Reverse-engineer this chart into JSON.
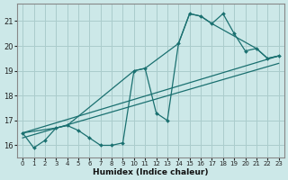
{
  "xlabel": "Humidex (Indice chaleur)",
  "bg_color": "#cce8e8",
  "grid_color": "#aacccc",
  "line_color": "#1a7070",
  "xlim": [
    -0.5,
    23.5
  ],
  "ylim": [
    15.5,
    21.7
  ],
  "yticks": [
    16,
    17,
    18,
    19,
    20,
    21
  ],
  "xticks": [
    0,
    1,
    2,
    3,
    4,
    5,
    6,
    7,
    8,
    9,
    10,
    11,
    12,
    13,
    14,
    15,
    16,
    17,
    18,
    19,
    20,
    21,
    22,
    23
  ],
  "line1_x": [
    0,
    1,
    2,
    3,
    4,
    5,
    6,
    7,
    8,
    9,
    10,
    11,
    12,
    13,
    14,
    15,
    16,
    17,
    18,
    19,
    20,
    21,
    22,
    23
  ],
  "line1_y": [
    16.5,
    15.9,
    16.2,
    16.7,
    16.8,
    16.6,
    16.3,
    16.0,
    16.0,
    16.1,
    19.0,
    19.1,
    17.3,
    17.0,
    20.1,
    21.3,
    21.2,
    20.9,
    21.3,
    20.5,
    19.8,
    19.9,
    19.5,
    19.6
  ],
  "line2_x": [
    0,
    3,
    4,
    10,
    11,
    14,
    15,
    16,
    17,
    21,
    22,
    23
  ],
  "line2_y": [
    16.5,
    16.7,
    16.8,
    19.0,
    19.1,
    20.1,
    21.3,
    21.2,
    20.9,
    19.9,
    19.5,
    19.6
  ],
  "line3_x": [
    0,
    23
  ],
  "line3_y": [
    16.5,
    19.6
  ],
  "line4_x": [
    0,
    23
  ],
  "line4_y": [
    16.3,
    19.3
  ]
}
